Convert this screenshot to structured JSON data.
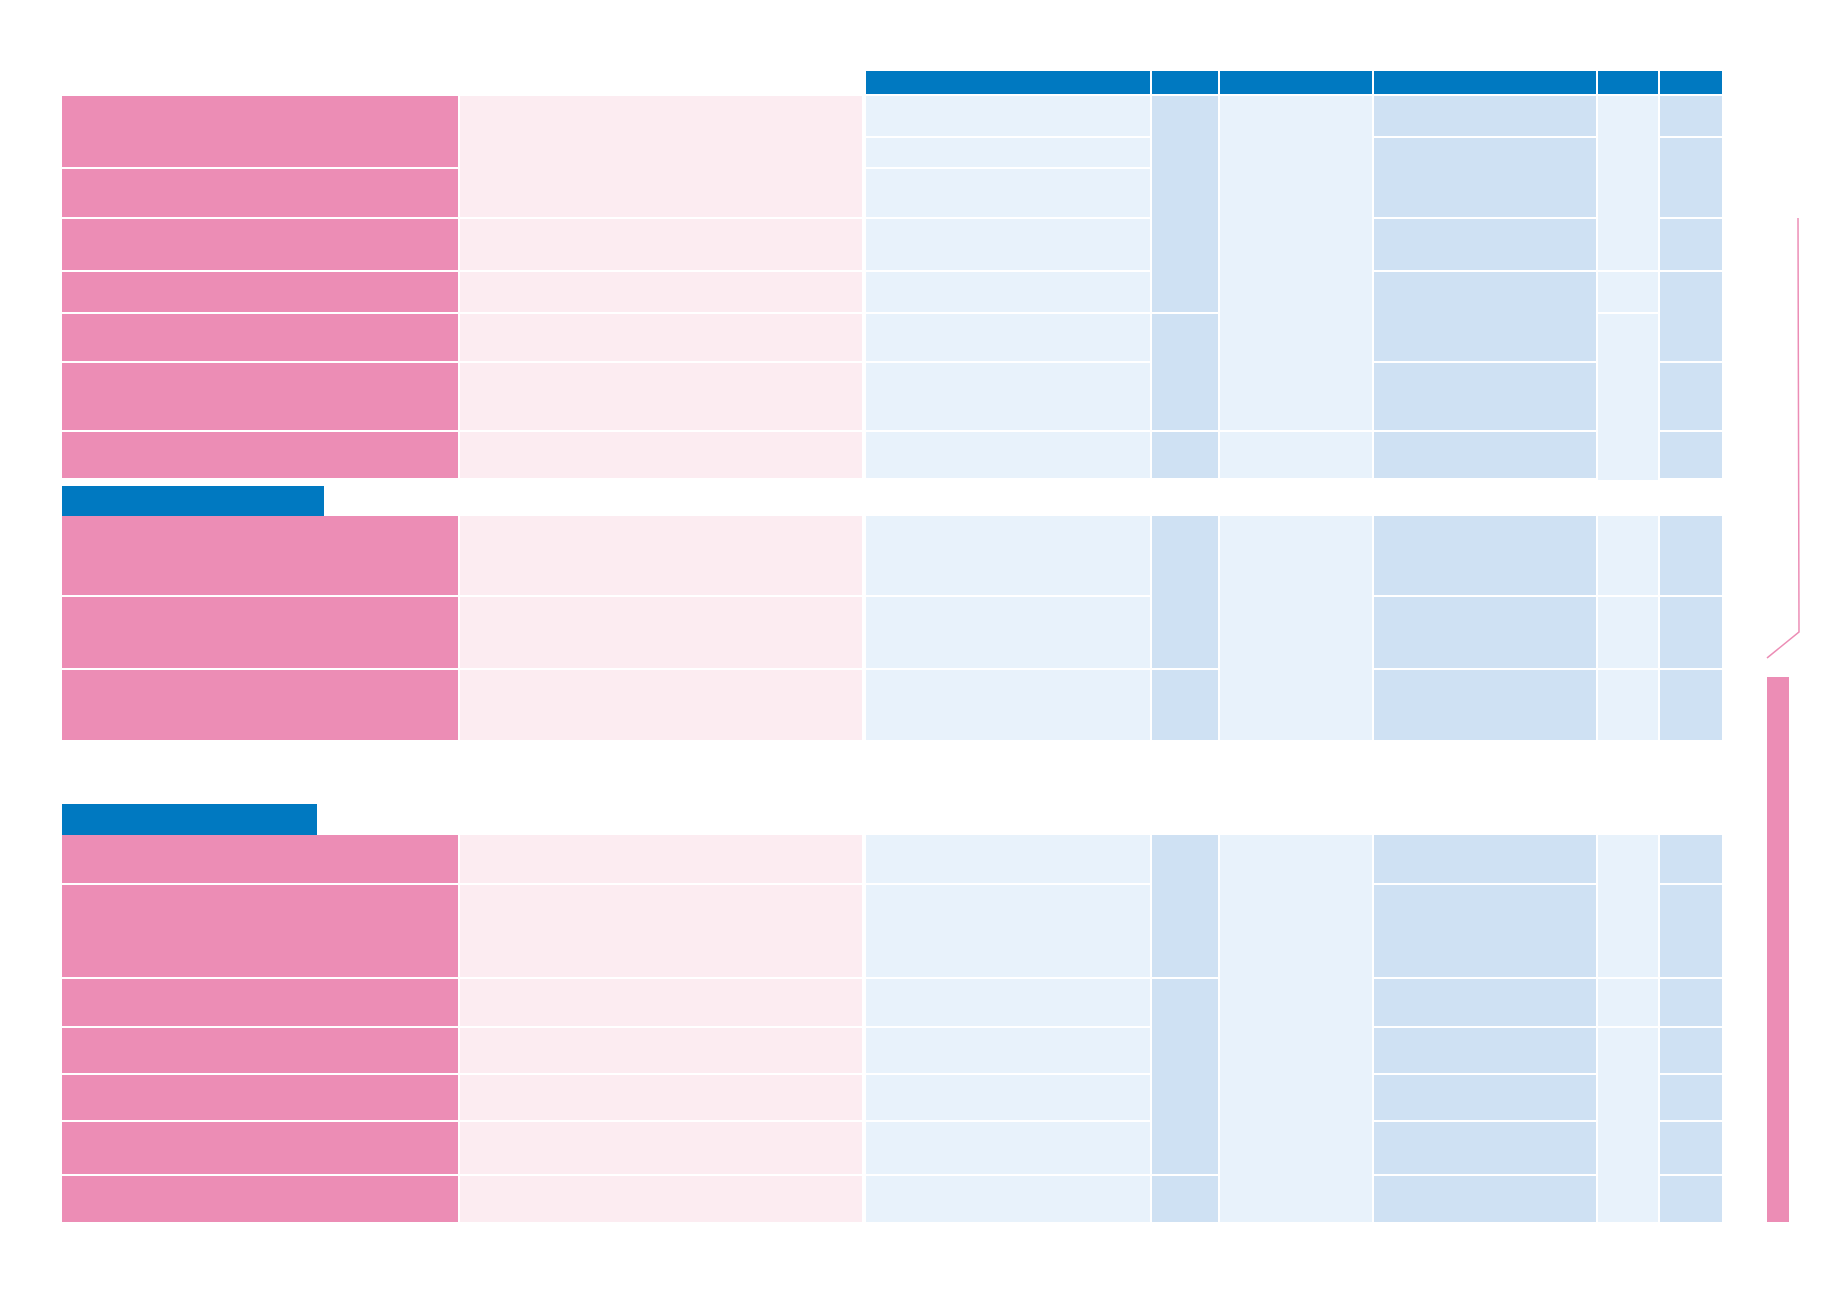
{
  "colors": {
    "pink_dark": "#ec8db5",
    "pink_light": "#fcecf1",
    "blue_header": "#0079c1",
    "blue_light": "#e8f2fb",
    "blue_mid": "#cfe1f3",
    "page_background": "#ffffff"
  },
  "table": {
    "header_labels": [
      "",
      "",
      "",
      "",
      "",
      ""
    ],
    "section_labels": [
      "",
      ""
    ]
  }
}
